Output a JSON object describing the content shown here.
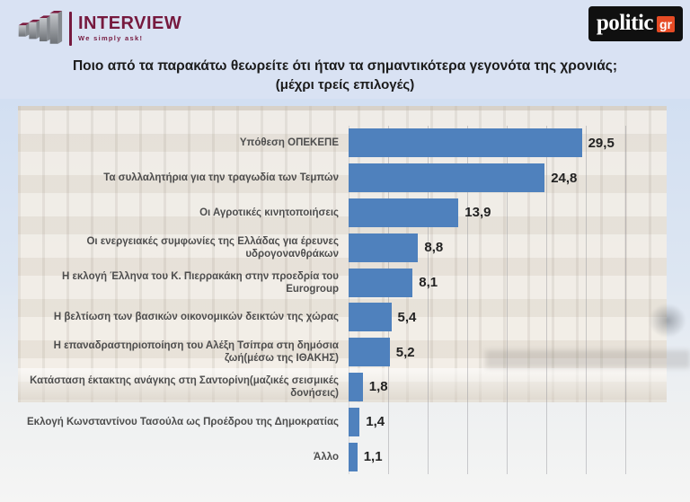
{
  "header": {
    "interview_logo": {
      "name": "INTERVIEW",
      "tagline": "We simply ask!"
    },
    "politic_logo": {
      "text": "politic",
      "badge": "gr"
    }
  },
  "title": {
    "line1": "Ποιο από τα παρακάτω θεωρείτε ότι ήταν τα σημαντικότερα γεγονότα της χρονιάς;",
    "line2": "(μέχρι τρείς επιλογές)"
  },
  "chart_data": {
    "type": "bar",
    "orientation": "horizontal",
    "title": "Ποιο από τα παρακάτω θεωρείτε ότι ήταν τα σημαντικότερα γεγονότα της χρονιάς; (μέχρι τρείς επιλογές)",
    "categories": [
      "Υπόθεση ΟΠΕΚΕΠΕ",
      "Τα συλλαλητήρια για την τραγωδία των Τεμπών",
      "Οι Αγροτικές κινητοποιήσεις",
      "Οι ενεργειακές συμφωνίες της Ελλάδας για έρευνες υδρογονανθράκων",
      "Η εκλογή Έλληνα του Κ. Πιερρακάκη στην προεδρία του Eurogroup",
      "Η βελτίωση των βασικών οικονομικών δεικτών της χώρας",
      "Η επαναδραστηριοποίηση του Αλέξη Τσίπρα στη δημόσια ζωή(μέσω της ΙΘΑΚΗΣ)",
      "Κατάσταση έκτακτης ανάγκης στη Σαντορίνη(μαζικές σεισμικές δονήσεις)",
      "Εκλογή Κωνσταντίνου Τασούλα ως Προέδρου της Δημοκρατίας",
      "Άλλο"
    ],
    "values": [
      29.5,
      24.8,
      13.9,
      8.8,
      8.1,
      5.4,
      5.2,
      1.8,
      1.4,
      1.1
    ],
    "value_labels": [
      "29,5",
      "24,8",
      "13,9",
      "8,8",
      "8,1",
      "5,4",
      "5,2",
      "1,8",
      "1,4",
      "1,1"
    ],
    "xlabel": "",
    "ylabel": "",
    "xlim": [
      0,
      40
    ],
    "grid": "vertical, every 5 units",
    "legend": "none",
    "bar_color": "#4f81bd"
  },
  "colors": {
    "background_top": "#d9e2f3",
    "bar": "#4f81bd",
    "interview_maroon": "#76193e",
    "politic_black": "#101010",
    "politic_orange": "#e64b25",
    "title_text": "#1b1b1b",
    "category_text": "#4d4d4d",
    "value_text": "#222222"
  }
}
